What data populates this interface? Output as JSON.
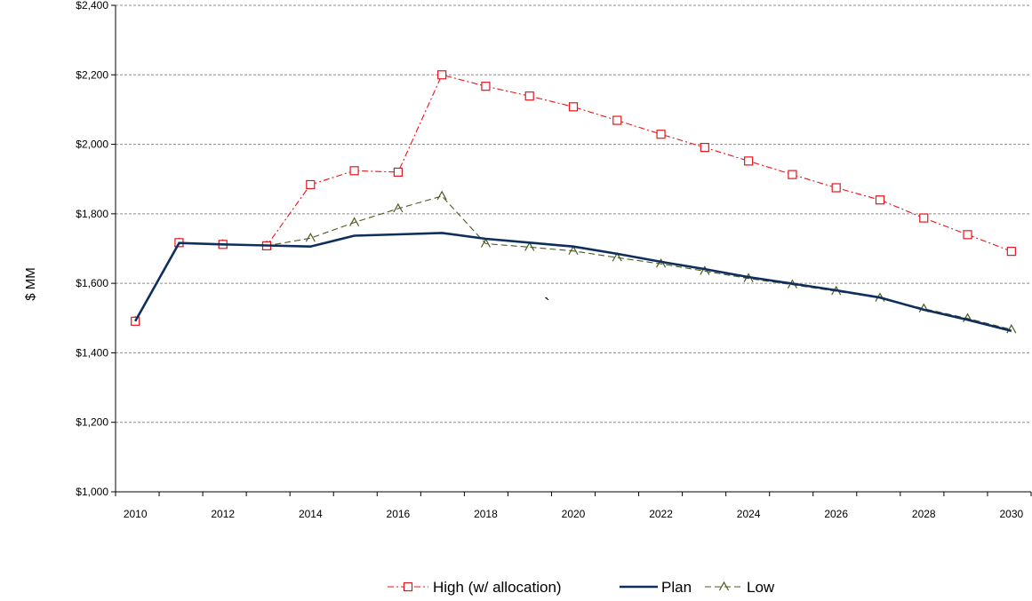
{
  "chart_data": {
    "type": "line",
    "title": "",
    "xlabel": "",
    "ylabel": "$ MM",
    "ylim": [
      1000,
      2400
    ],
    "yticks": [
      1000,
      1200,
      1400,
      1600,
      1800,
      2000,
      2200,
      2400
    ],
    "ytick_labels": [
      "$1,000",
      "$1,200",
      "$1,400",
      "$1,600",
      "$1,800",
      "$2,000",
      "$2,200",
      "$2,400"
    ],
    "xlim": [
      2009.55,
      2030.45
    ],
    "xticks": [
      2010,
      2012,
      2014,
      2016,
      2018,
      2020,
      2022,
      2024,
      2026,
      2028,
      2030
    ],
    "xtick_labels": [
      "2010",
      "2012",
      "2014",
      "2016",
      "2018",
      "2020",
      "2022",
      "2024",
      "2026",
      "2028",
      "2030"
    ],
    "x": [
      2010,
      2011,
      2012,
      2013,
      2014,
      2015,
      2016,
      2017,
      2018,
      2019,
      2020,
      2021,
      2022,
      2023,
      2024,
      2025,
      2026,
      2027,
      2028,
      2029,
      2030
    ],
    "grid": "horizontal dashed",
    "legend_position": "bottom",
    "series": [
      {
        "name": "High (w/ allocation)",
        "color": "#e8141b",
        "style": "dash-dot",
        "marker": "square",
        "values": [
          1491,
          1717,
          1712,
          1708,
          1884,
          1924,
          1920,
          2200,
          2167,
          2139,
          2108,
          2069,
          2029,
          1991,
          1952,
          1913,
          1875,
          1840,
          1788,
          1740,
          1692
        ]
      },
      {
        "name": "Plan",
        "color": "#0e2f5b",
        "style": "solid",
        "marker": "none",
        "values": [
          1491,
          1716,
          1712,
          1709,
          1706,
          1737,
          1741,
          1745,
          1728,
          1717,
          1706,
          1685,
          1662,
          1641,
          1618,
          1599,
          1580,
          1559,
          1524,
          1495,
          1463
        ]
      },
      {
        "name": "Low",
        "color": "#4a5a1f",
        "style": "dashed",
        "marker": "triangle",
        "values": [
          1491,
          1716,
          1712,
          1708,
          1730,
          1775,
          1815,
          1851,
          1714,
          1704,
          1693,
          1674,
          1656,
          1635,
          1614,
          1596,
          1577,
          1558,
          1527,
          1499,
          1467
        ]
      }
    ],
    "annotations": [
      "`"
    ]
  }
}
